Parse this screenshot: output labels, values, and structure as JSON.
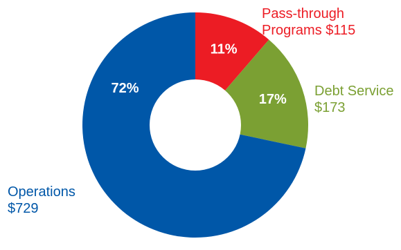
{
  "chart_data": {
    "type": "pie",
    "variant": "donut",
    "title": "",
    "slices": [
      {
        "name_lines": [
          "Pass-through",
          "Programs $115"
        ],
        "value": 115,
        "percent": 11,
        "percent_label": "11%",
        "color": "#ec1c24"
      },
      {
        "name_lines": [
          "Debt Service",
          "$173"
        ],
        "value": 173,
        "percent": 17,
        "percent_label": "17%",
        "color": "#7ba033"
      },
      {
        "name_lines": [
          "Operations",
          "$729"
        ],
        "value": 729,
        "percent": 72,
        "percent_label": "72%",
        "color": "#0057a8"
      }
    ],
    "start_angle_deg": 0,
    "direction": "clockwise",
    "legend": "none"
  }
}
